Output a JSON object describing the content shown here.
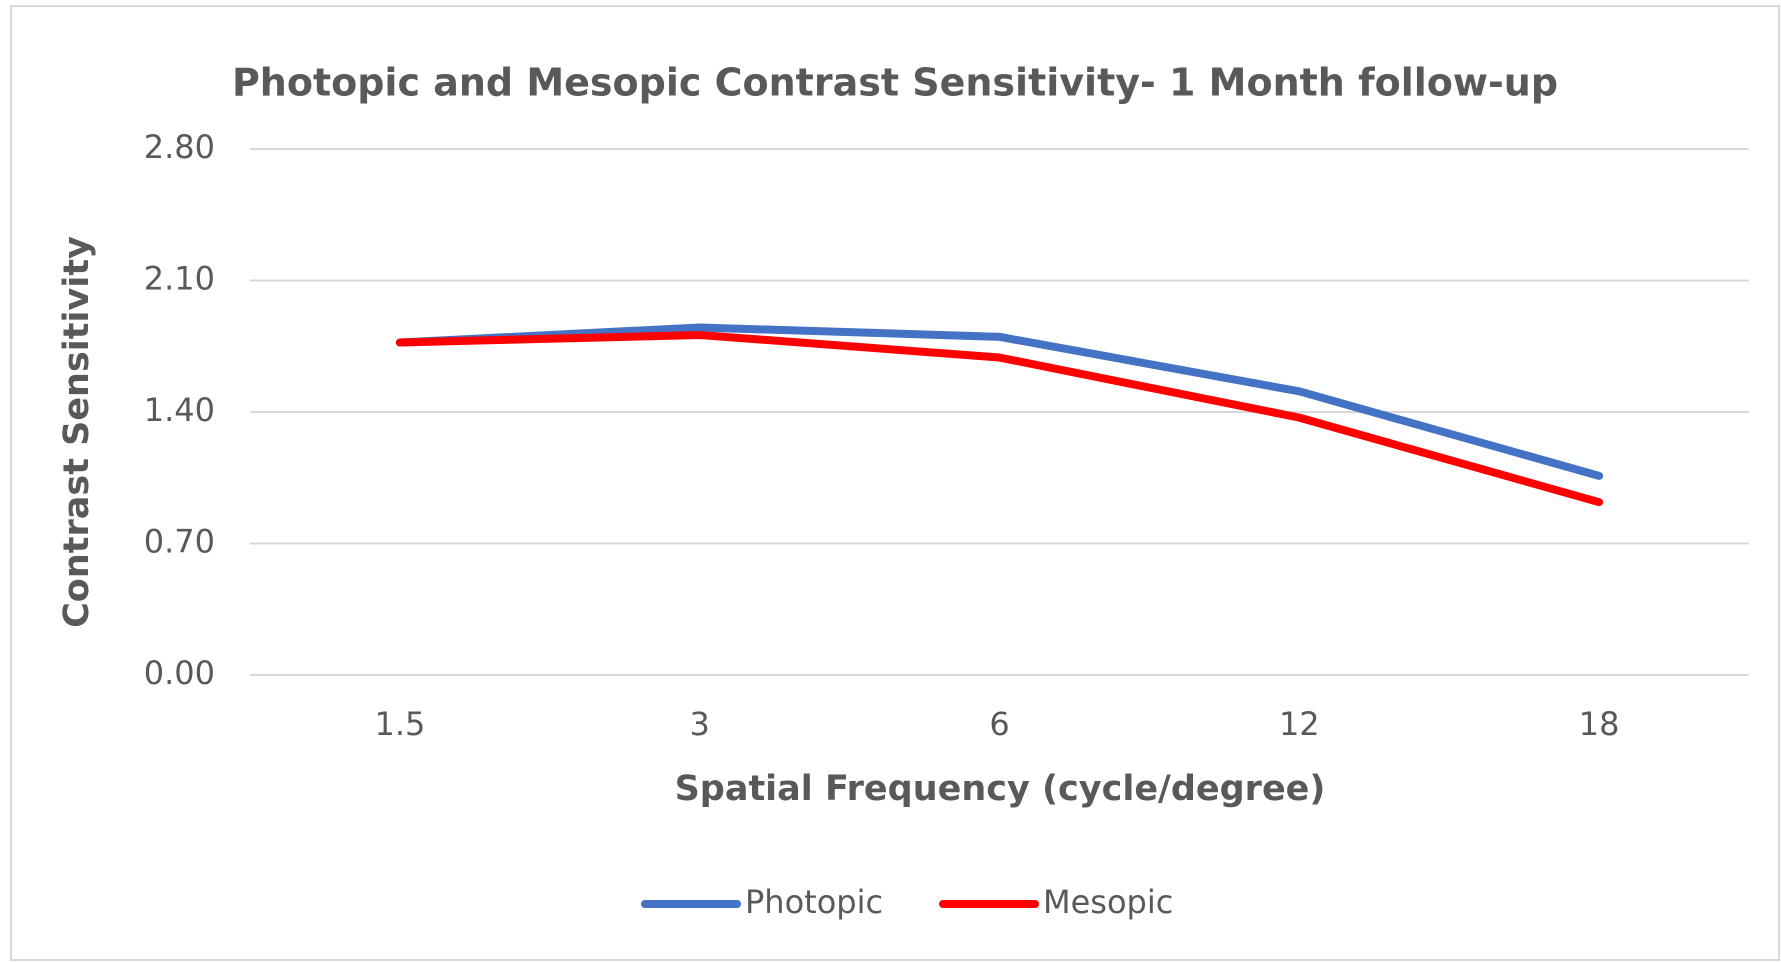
{
  "chart_data": {
    "type": "line",
    "title": "Photopic and Mesopic Contrast Sensitivity- 1 Month follow-up",
    "x_label": "Spatial Frequency (cycle/degree)",
    "y_label": "Contrast Sensitivity",
    "categories": [
      "1.5",
      "3",
      "6",
      "12",
      "18"
    ],
    "series": [
      {
        "name": "Photopic",
        "color": "#4472c4",
        "values": [
          1.77,
          1.85,
          1.8,
          1.51,
          1.06
        ]
      },
      {
        "name": "Mesopic",
        "color": "#ff0000",
        "values": [
          1.77,
          1.81,
          1.69,
          1.37,
          0.92
        ]
      }
    ],
    "ylim": [
      0,
      2.8
    ],
    "yticks": [
      {
        "value": 0,
        "label": "0.00"
      },
      {
        "value": 0.7,
        "label": "0.70"
      },
      {
        "value": 1.4,
        "label": "1.40"
      },
      {
        "value": 2.1,
        "label": "2.10"
      },
      {
        "value": 2.8,
        "label": "2.80"
      }
    ],
    "grid": true,
    "legend": "bottom"
  }
}
